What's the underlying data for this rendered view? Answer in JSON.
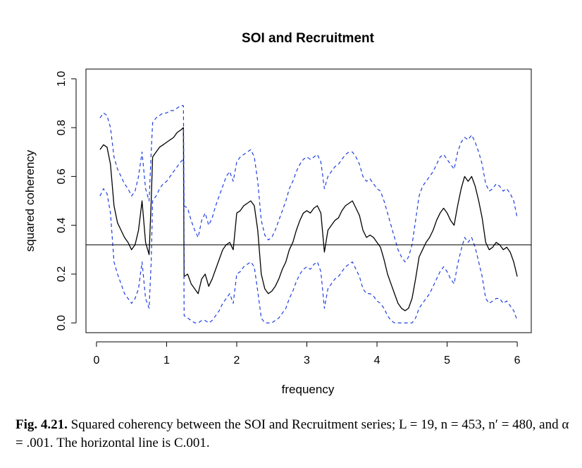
{
  "chart_data": {
    "type": "line",
    "title": "SOI and Recruitment",
    "xlabel": "frequency",
    "ylabel": "squared coherency",
    "xlim": [
      -0.15,
      6.2
    ],
    "ylim": [
      -0.04,
      1.04
    ],
    "xticks": [
      0,
      1,
      2,
      3,
      4,
      5,
      6
    ],
    "yticks": [
      0.0,
      0.2,
      0.4,
      0.6,
      0.8,
      1.0
    ],
    "xtick_labels": [
      "0",
      "1",
      "2",
      "3",
      "4",
      "5",
      "6"
    ],
    "ytick_labels": [
      "0.0",
      "0.2",
      "0.4",
      "0.6",
      "0.8",
      "1.0"
    ],
    "hline": 0.32,
    "series": [
      {
        "style": "solid",
        "color": "#000000",
        "x": [
          0.05,
          0.1,
          0.15,
          0.2,
          0.25,
          0.3,
          0.35,
          0.4,
          0.45,
          0.5,
          0.55,
          0.6,
          0.65,
          0.7,
          0.75,
          0.78,
          0.8,
          0.85,
          0.9,
          0.95,
          1.0,
          1.05,
          1.1,
          1.15,
          1.2,
          1.24,
          1.25,
          1.3,
          1.35,
          1.4,
          1.45,
          1.5,
          1.55,
          1.6,
          1.65,
          1.7,
          1.75,
          1.8,
          1.85,
          1.9,
          1.95,
          2.0,
          2.05,
          2.1,
          2.15,
          2.2,
          2.25,
          2.3,
          2.35,
          2.4,
          2.45,
          2.5,
          2.55,
          2.6,
          2.65,
          2.7,
          2.75,
          2.8,
          2.85,
          2.9,
          2.95,
          3.0,
          3.05,
          3.1,
          3.15,
          3.2,
          3.25,
          3.3,
          3.35,
          3.4,
          3.45,
          3.5,
          3.55,
          3.6,
          3.65,
          3.7,
          3.75,
          3.8,
          3.85,
          3.9,
          3.95,
          4.0,
          4.05,
          4.1,
          4.15,
          4.2,
          4.25,
          4.3,
          4.35,
          4.4,
          4.45,
          4.5,
          4.55,
          4.6,
          4.65,
          4.7,
          4.75,
          4.8,
          4.85,
          4.9,
          4.95,
          5.0,
          5.05,
          5.1,
          5.15,
          5.2,
          5.25,
          5.3,
          5.35,
          5.4,
          5.45,
          5.5,
          5.55,
          5.6,
          5.65,
          5.7,
          5.75,
          5.8,
          5.85,
          5.9,
          5.95,
          6.0
        ],
        "y": [
          0.71,
          0.73,
          0.72,
          0.65,
          0.48,
          0.41,
          0.38,
          0.35,
          0.33,
          0.3,
          0.32,
          0.38,
          0.5,
          0.33,
          0.28,
          0.5,
          0.68,
          0.7,
          0.72,
          0.73,
          0.74,
          0.75,
          0.76,
          0.78,
          0.79,
          0.8,
          0.19,
          0.2,
          0.16,
          0.14,
          0.12,
          0.18,
          0.2,
          0.15,
          0.18,
          0.22,
          0.26,
          0.3,
          0.32,
          0.33,
          0.3,
          0.45,
          0.46,
          0.48,
          0.49,
          0.5,
          0.48,
          0.38,
          0.2,
          0.14,
          0.12,
          0.13,
          0.15,
          0.18,
          0.22,
          0.25,
          0.3,
          0.33,
          0.38,
          0.42,
          0.45,
          0.46,
          0.45,
          0.47,
          0.48,
          0.45,
          0.29,
          0.38,
          0.4,
          0.42,
          0.43,
          0.46,
          0.48,
          0.49,
          0.5,
          0.47,
          0.44,
          0.38,
          0.35,
          0.36,
          0.35,
          0.33,
          0.31,
          0.26,
          0.2,
          0.16,
          0.12,
          0.08,
          0.06,
          0.05,
          0.06,
          0.1,
          0.18,
          0.27,
          0.3,
          0.33,
          0.35,
          0.38,
          0.42,
          0.45,
          0.47,
          0.45,
          0.42,
          0.4,
          0.48,
          0.55,
          0.6,
          0.58,
          0.6,
          0.56,
          0.5,
          0.43,
          0.33,
          0.3,
          0.31,
          0.33,
          0.32,
          0.3,
          0.31,
          0.29,
          0.25,
          0.19
        ]
      },
      {
        "style": "dashed",
        "color": "#1f3fe0",
        "x": [
          0.05,
          0.1,
          0.15,
          0.2,
          0.25,
          0.3,
          0.35,
          0.4,
          0.45,
          0.5,
          0.55,
          0.6,
          0.65,
          0.7,
          0.75,
          0.78,
          0.8,
          0.85,
          0.9,
          0.95,
          1.0,
          1.05,
          1.1,
          1.15,
          1.2,
          1.24,
          1.25,
          1.3,
          1.35,
          1.4,
          1.45,
          1.5,
          1.55,
          1.6,
          1.65,
          1.7,
          1.75,
          1.8,
          1.85,
          1.9,
          1.95,
          2.0,
          2.05,
          2.1,
          2.15,
          2.2,
          2.25,
          2.3,
          2.35,
          2.4,
          2.45,
          2.5,
          2.55,
          2.6,
          2.65,
          2.7,
          2.75,
          2.8,
          2.85,
          2.9,
          2.95,
          3.0,
          3.05,
          3.1,
          3.15,
          3.2,
          3.25,
          3.3,
          3.35,
          3.4,
          3.45,
          3.5,
          3.55,
          3.6,
          3.65,
          3.7,
          3.75,
          3.8,
          3.85,
          3.9,
          3.95,
          4.0,
          4.05,
          4.1,
          4.15,
          4.2,
          4.25,
          4.3,
          4.35,
          4.4,
          4.45,
          4.5,
          4.55,
          4.6,
          4.65,
          4.7,
          4.75,
          4.8,
          4.85,
          4.9,
          4.95,
          5.0,
          5.05,
          5.1,
          5.15,
          5.2,
          5.25,
          5.3,
          5.35,
          5.4,
          5.45,
          5.5,
          5.55,
          5.6,
          5.65,
          5.7,
          5.75,
          5.8,
          5.85,
          5.9,
          5.95,
          6.0
        ],
        "y": [
          0.84,
          0.86,
          0.85,
          0.8,
          0.68,
          0.63,
          0.6,
          0.57,
          0.55,
          0.52,
          0.54,
          0.6,
          0.7,
          0.55,
          0.5,
          0.7,
          0.82,
          0.84,
          0.85,
          0.86,
          0.86,
          0.87,
          0.87,
          0.88,
          0.89,
          0.89,
          0.48,
          0.47,
          0.42,
          0.38,
          0.35,
          0.42,
          0.45,
          0.4,
          0.43,
          0.48,
          0.52,
          0.56,
          0.6,
          0.62,
          0.58,
          0.66,
          0.68,
          0.69,
          0.7,
          0.71,
          0.68,
          0.58,
          0.42,
          0.36,
          0.34,
          0.35,
          0.38,
          0.42,
          0.46,
          0.5,
          0.55,
          0.58,
          0.62,
          0.65,
          0.67,
          0.68,
          0.67,
          0.68,
          0.69,
          0.66,
          0.55,
          0.6,
          0.62,
          0.64,
          0.65,
          0.67,
          0.69,
          0.7,
          0.7,
          0.68,
          0.65,
          0.6,
          0.58,
          0.59,
          0.57,
          0.55,
          0.54,
          0.5,
          0.45,
          0.4,
          0.35,
          0.3,
          0.27,
          0.25,
          0.27,
          0.32,
          0.42,
          0.52,
          0.56,
          0.58,
          0.6,
          0.62,
          0.65,
          0.68,
          0.69,
          0.67,
          0.65,
          0.63,
          0.7,
          0.74,
          0.76,
          0.75,
          0.77,
          0.74,
          0.7,
          0.65,
          0.57,
          0.54,
          0.55,
          0.57,
          0.56,
          0.54,
          0.55,
          0.53,
          0.5,
          0.43
        ]
      },
      {
        "style": "dashed",
        "color": "#1f3fe0",
        "x": [
          0.05,
          0.1,
          0.15,
          0.2,
          0.25,
          0.3,
          0.35,
          0.4,
          0.45,
          0.5,
          0.55,
          0.6,
          0.65,
          0.7,
          0.75,
          0.78,
          0.8,
          0.85,
          0.9,
          0.95,
          1.0,
          1.05,
          1.1,
          1.15,
          1.2,
          1.24,
          1.25,
          1.3,
          1.35,
          1.4,
          1.45,
          1.5,
          1.55,
          1.6,
          1.65,
          1.7,
          1.75,
          1.8,
          1.85,
          1.9,
          1.95,
          2.0,
          2.05,
          2.1,
          2.15,
          2.2,
          2.25,
          2.3,
          2.35,
          2.4,
          2.45,
          2.5,
          2.55,
          2.6,
          2.65,
          2.7,
          2.75,
          2.8,
          2.85,
          2.9,
          2.95,
          3.0,
          3.05,
          3.1,
          3.15,
          3.2,
          3.25,
          3.3,
          3.35,
          3.4,
          3.45,
          3.5,
          3.55,
          3.6,
          3.65,
          3.7,
          3.75,
          3.8,
          3.85,
          3.9,
          3.95,
          4.0,
          4.05,
          4.1,
          4.15,
          4.2,
          4.25,
          4.3,
          4.35,
          4.4,
          4.45,
          4.5,
          4.55,
          4.6,
          4.65,
          4.7,
          4.75,
          4.8,
          4.85,
          4.9,
          4.95,
          5.0,
          5.05,
          5.1,
          5.15,
          5.2,
          5.25,
          5.3,
          5.35,
          5.4,
          5.45,
          5.5,
          5.55,
          5.6,
          5.65,
          5.7,
          5.75,
          5.8,
          5.85,
          5.9,
          5.95,
          6.0
        ],
        "y": [
          0.52,
          0.55,
          0.53,
          0.45,
          0.25,
          0.2,
          0.16,
          0.12,
          0.1,
          0.08,
          0.1,
          0.14,
          0.25,
          0.1,
          0.06,
          0.25,
          0.5,
          0.52,
          0.55,
          0.57,
          0.58,
          0.6,
          0.62,
          0.64,
          0.66,
          0.67,
          0.03,
          0.02,
          0.01,
          0.0,
          0.0,
          0.01,
          0.01,
          0.0,
          0.01,
          0.03,
          0.05,
          0.08,
          0.1,
          0.12,
          0.08,
          0.2,
          0.21,
          0.23,
          0.24,
          0.25,
          0.23,
          0.13,
          0.02,
          0.0,
          0.0,
          0.0,
          0.01,
          0.02,
          0.04,
          0.06,
          0.1,
          0.13,
          0.17,
          0.2,
          0.22,
          0.23,
          0.22,
          0.24,
          0.25,
          0.21,
          0.06,
          0.14,
          0.16,
          0.18,
          0.19,
          0.21,
          0.23,
          0.24,
          0.25,
          0.22,
          0.19,
          0.14,
          0.12,
          0.12,
          0.11,
          0.09,
          0.08,
          0.06,
          0.03,
          0.01,
          0.0,
          0.0,
          0.0,
          0.0,
          0.0,
          0.0,
          0.02,
          0.06,
          0.08,
          0.1,
          0.12,
          0.15,
          0.18,
          0.21,
          0.23,
          0.21,
          0.18,
          0.16,
          0.24,
          0.3,
          0.35,
          0.33,
          0.35,
          0.31,
          0.25,
          0.19,
          0.1,
          0.08,
          0.09,
          0.1,
          0.1,
          0.08,
          0.09,
          0.07,
          0.05,
          0.01
        ]
      }
    ]
  },
  "caption": {
    "label": "Fig. 4.21.",
    "text": "Squared coherency between the SOI and Recruitment series; L = 19, n = 453, n′ = 480, and α = .001. The horizontal line is C.001."
  }
}
